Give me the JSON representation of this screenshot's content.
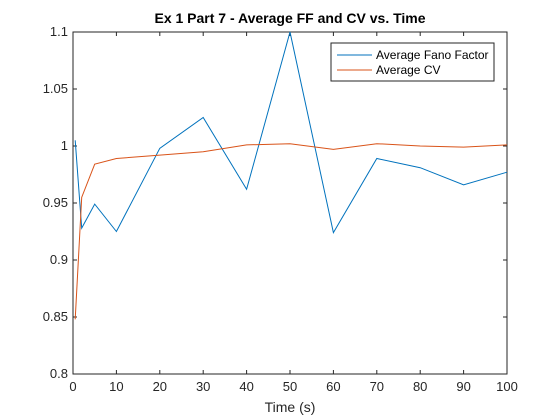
{
  "chart_data": {
    "type": "line",
    "title": "Ex 1 Part 7 - Average FF and CV vs. Time",
    "xlabel": "Time (s)",
    "ylabel": "",
    "xlim": [
      0,
      100
    ],
    "ylim": [
      0.8,
      1.1
    ],
    "xticks": [
      0,
      10,
      20,
      30,
      40,
      50,
      60,
      70,
      80,
      90,
      100
    ],
    "yticks": [
      0.8,
      0.85,
      0.9,
      0.95,
      1,
      1.05,
      1.1
    ],
    "xtick_labels": [
      "0",
      "10",
      "20",
      "30",
      "40",
      "50",
      "60",
      "70",
      "80",
      "90",
      "100"
    ],
    "ytick_labels": [
      "0.8",
      "0.85",
      "0.9",
      "0.95",
      "1",
      "1.05",
      "1.1"
    ],
    "grid": false,
    "legend_position": "top-right",
    "series": [
      {
        "name": "Average Fano Factor",
        "color": "#0072BD",
        "x": [
          0.5,
          2,
          5,
          10,
          20,
          30,
          40,
          50,
          60,
          70,
          80,
          90,
          100
        ],
        "y": [
          1.005,
          0.928,
          0.949,
          0.925,
          0.998,
          1.025,
          0.962,
          1.1,
          0.924,
          0.989,
          0.981,
          0.966,
          0.977
        ]
      },
      {
        "name": "Average CV",
        "color": "#D95319",
        "x": [
          0.5,
          2,
          5,
          10,
          20,
          30,
          40,
          50,
          60,
          70,
          80,
          90,
          100
        ],
        "y": [
          0.848,
          0.955,
          0.984,
          0.989,
          0.992,
          0.995,
          1.001,
          1.002,
          0.997,
          1.002,
          1.0,
          0.999,
          1.001
        ]
      }
    ]
  }
}
